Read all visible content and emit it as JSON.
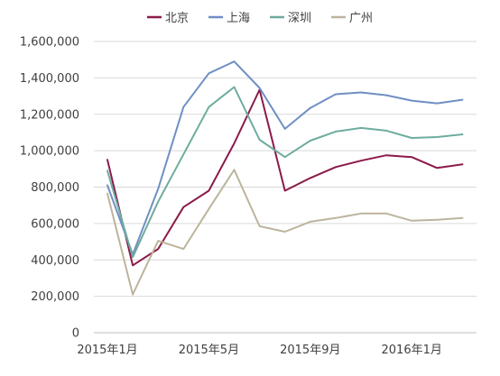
{
  "chart_data": {
    "type": "line",
    "x": [
      "2015年1月",
      "2015年2月",
      "2015年3月",
      "2015年4月",
      "2015年5月",
      "2015年6月",
      "2015年7月",
      "2015年8月",
      "2015年9月",
      "2015年10月",
      "2015年11月",
      "2015年12月",
      "2016年1月",
      "2016年2月",
      "2016年3月"
    ],
    "x_tick_labels": [
      "2015年1月",
      "2015年5月",
      "2015年9月",
      "2016年1月"
    ],
    "y_ticks": [
      "0",
      "200,000",
      "400,000",
      "600,000",
      "800,000",
      "1,000,000",
      "1,200,000",
      "1,400,000",
      "1,600,000"
    ],
    "ylim": [
      0,
      1600000
    ],
    "grid": true,
    "legend_position": "top",
    "series": [
      {
        "name": "北京",
        "color": "#8B1A4A",
        "values": [
          950000,
          370000,
          460000,
          690000,
          780000,
          1040000,
          1335000,
          780000,
          850000,
          910000,
          945000,
          975000,
          965000,
          905000,
          925000
        ]
      },
      {
        "name": "上海",
        "color": "#6F8FC4",
        "values": [
          810000,
          430000,
          790000,
          1240000,
          1425000,
          1490000,
          1345000,
          1120000,
          1235000,
          1310000,
          1320000,
          1305000,
          1275000,
          1260000,
          1280000
        ]
      },
      {
        "name": "深圳",
        "color": "#6EAC9E",
        "values": [
          890000,
          415000,
          720000,
          980000,
          1240000,
          1350000,
          1060000,
          965000,
          1055000,
          1105000,
          1125000,
          1110000,
          1070000,
          1075000,
          1090000
        ]
      },
      {
        "name": "广州",
        "color": "#BDB49E",
        "values": [
          765000,
          210000,
          505000,
          460000,
          680000,
          895000,
          585000,
          555000,
          610000,
          630000,
          655000,
          655000,
          615000,
          620000,
          630000
        ]
      }
    ]
  }
}
